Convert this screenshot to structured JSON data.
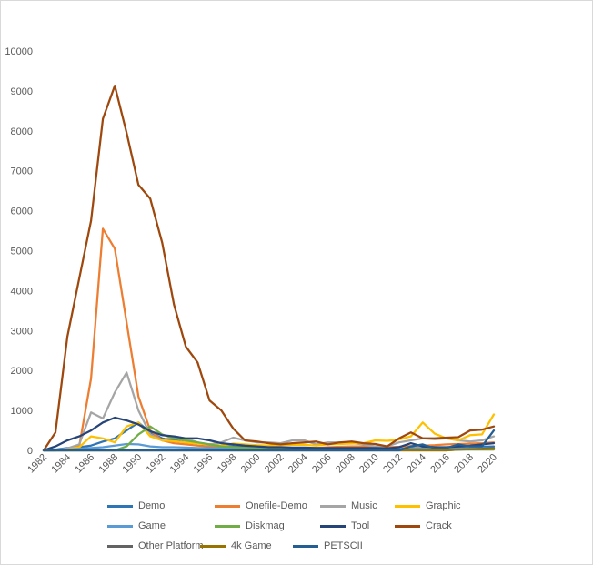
{
  "chart_data": {
    "type": "line",
    "title": "",
    "xlabel": "",
    "ylabel": "",
    "ylim": [
      0,
      10000
    ],
    "xlim": [
      1982,
      2020
    ],
    "yticks": [
      "0",
      "1000",
      "2000",
      "3000",
      "4000",
      "5000",
      "6000",
      "7000",
      "8000",
      "9000",
      "10000"
    ],
    "xticks": [
      "1982",
      "1984",
      "1986",
      "1988",
      "1990",
      "1992",
      "1994",
      "1996",
      "1998",
      "2000",
      "2002",
      "2004",
      "2006",
      "2008",
      "2010",
      "2012",
      "2014",
      "2016",
      "2018",
      "2020"
    ],
    "grid": false,
    "legend_position": "bottom",
    "x": [
      1982,
      1983,
      1984,
      1985,
      1986,
      1987,
      1988,
      1989,
      1990,
      1991,
      1992,
      1993,
      1994,
      1995,
      1996,
      1997,
      1998,
      1999,
      2000,
      2001,
      2002,
      2003,
      2004,
      2005,
      2006,
      2007,
      2008,
      2009,
      2010,
      2011,
      2012,
      2013,
      2014,
      2015,
      2016,
      2017,
      2018,
      2019,
      2020
    ],
    "series": [
      {
        "name": "Demo",
        "color": "#2e75b6",
        "values": [
          0,
          20,
          60,
          80,
          120,
          220,
          300,
          500,
          700,
          450,
          300,
          250,
          200,
          180,
          150,
          120,
          100,
          80,
          60,
          50,
          50,
          40,
          50,
          60,
          40,
          40,
          40,
          40,
          30,
          30,
          40,
          50,
          60,
          60,
          60,
          70,
          80,
          90,
          100
        ]
      },
      {
        "name": "Onefile-Demo",
        "color": "#ed7d31",
        "values": [
          0,
          0,
          0,
          100,
          1800,
          5550,
          5050,
          3200,
          1350,
          500,
          250,
          180,
          150,
          120,
          100,
          80,
          80,
          60,
          60,
          50,
          50,
          50,
          60,
          60,
          80,
          90,
          100,
          100,
          90,
          80,
          90,
          110,
          120,
          130,
          150,
          160,
          170,
          180,
          200
        ]
      },
      {
        "name": "Music",
        "color": "#a5a5a5",
        "values": [
          0,
          0,
          50,
          150,
          950,
          800,
          1450,
          1950,
          1000,
          400,
          250,
          350,
          300,
          200,
          150,
          200,
          320,
          250,
          200,
          200,
          180,
          250,
          250,
          150,
          200,
          200,
          180,
          150,
          100,
          100,
          200,
          250,
          300,
          280,
          300,
          250,
          220,
          250,
          350
        ]
      },
      {
        "name": "Graphic",
        "color": "#ffc000",
        "values": [
          0,
          0,
          20,
          80,
          350,
          300,
          200,
          600,
          700,
          350,
          250,
          230,
          200,
          170,
          150,
          120,
          170,
          150,
          130,
          120,
          130,
          140,
          140,
          120,
          150,
          160,
          170,
          180,
          250,
          240,
          270,
          350,
          700,
          420,
          300,
          250,
          380,
          400,
          900
        ]
      },
      {
        "name": "Game",
        "color": "#5b9bd5",
        "values": [
          0,
          0,
          20,
          40,
          60,
          80,
          120,
          160,
          150,
          100,
          80,
          80,
          70,
          60,
          60,
          50,
          50,
          40,
          40,
          30,
          30,
          30,
          30,
          30,
          30,
          30,
          30,
          30,
          30,
          30,
          30,
          40,
          40,
          40,
          40,
          40,
          50,
          50,
          60
        ]
      },
      {
        "name": "Diskmag",
        "color": "#70ad47",
        "values": [
          0,
          0,
          0,
          0,
          0,
          0,
          0,
          100,
          400,
          600,
          400,
          300,
          250,
          200,
          150,
          100,
          80,
          60,
          50,
          40,
          40,
          30,
          30,
          30,
          20,
          20,
          20,
          20,
          20,
          20,
          20,
          20,
          20,
          20,
          20,
          20,
          20,
          20,
          20
        ]
      },
      {
        "name": "Tool",
        "color": "#264478",
        "values": [
          0,
          100,
          250,
          350,
          500,
          700,
          820,
          750,
          650,
          480,
          380,
          350,
          300,
          300,
          250,
          180,
          150,
          120,
          100,
          80,
          80,
          70,
          70,
          60,
          60,
          60,
          60,
          60,
          60,
          50,
          80,
          180,
          100,
          80,
          80,
          100,
          120,
          150,
          180
        ]
      },
      {
        "name": "Crack",
        "color": "#9e480e",
        "values": [
          0,
          450,
          2850,
          4300,
          5750,
          8300,
          9130,
          7950,
          6650,
          6300,
          5200,
          3650,
          2600,
          2200,
          1250,
          1000,
          550,
          250,
          220,
          180,
          150,
          180,
          200,
          220,
          150,
          200,
          220,
          180,
          160,
          100,
          300,
          450,
          300,
          300,
          320,
          330,
          500,
          520,
          600
        ]
      },
      {
        "name": "Other Platform",
        "color": "#636363",
        "values": [
          0,
          0,
          0,
          0,
          0,
          0,
          0,
          0,
          0,
          0,
          0,
          0,
          0,
          0,
          0,
          0,
          0,
          0,
          0,
          0,
          0,
          0,
          0,
          0,
          0,
          0,
          0,
          0,
          0,
          0,
          0,
          0,
          0,
          0,
          0,
          20,
          30,
          40,
          60
        ]
      },
      {
        "name": "4k Game",
        "color": "#997300",
        "values": [
          0,
          0,
          0,
          0,
          0,
          0,
          0,
          0,
          0,
          0,
          0,
          0,
          0,
          0,
          0,
          0,
          0,
          0,
          0,
          0,
          0,
          0,
          0,
          0,
          0,
          0,
          0,
          0,
          0,
          0,
          0,
          0,
          0,
          0,
          0,
          20,
          30,
          30,
          40
        ]
      },
      {
        "name": "PETSCII",
        "color": "#255e91",
        "values": [
          0,
          0,
          0,
          0,
          0,
          0,
          0,
          0,
          0,
          0,
          0,
          0,
          0,
          0,
          0,
          0,
          0,
          0,
          0,
          0,
          0,
          0,
          0,
          0,
          0,
          0,
          0,
          0,
          0,
          0,
          0,
          100,
          150,
          50,
          60,
          150,
          100,
          100,
          500
        ]
      }
    ]
  }
}
